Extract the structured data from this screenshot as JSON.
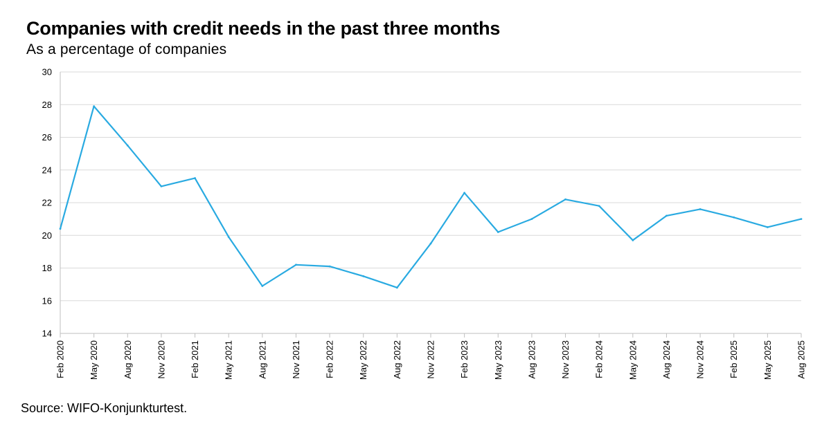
{
  "title": "Companies with credit needs in the past three months",
  "subtitle": "As a percentage of companies",
  "source": "Source: WIFO-Konjunkturtest.",
  "chart_data": {
    "type": "line",
    "ylim": [
      14,
      30
    ],
    "yticks": [
      14,
      16,
      18,
      20,
      22,
      24,
      26,
      28,
      30
    ],
    "grid": true,
    "legend": "none",
    "x": [
      "Feb 2020",
      "May 2020",
      "Aug 2020",
      "Nov 2020",
      "Feb 2021",
      "May 2021",
      "Aug 2021",
      "Nov 2021",
      "Feb 2022",
      "May 2022",
      "Aug 2022",
      "Nov 2022",
      "Feb 2023",
      "May 2023",
      "Aug 2023",
      "Nov 2023",
      "Feb 2024",
      "May 2024",
      "Aug 2024",
      "Nov 2024",
      "Feb 2025",
      "May 2025",
      "Aug 2025"
    ],
    "series": [
      {
        "color": "#29aae1",
        "values": [
          20.4,
          27.9,
          25.5,
          23.0,
          23.5,
          19.9,
          16.9,
          18.2,
          18.1,
          17.5,
          16.8,
          19.5,
          22.6,
          20.2,
          21.0,
          22.2,
          21.8,
          19.7,
          21.2,
          21.6,
          21.1,
          20.5,
          21.0
        ]
      }
    ]
  }
}
